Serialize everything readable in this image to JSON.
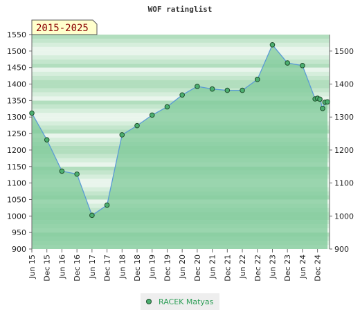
{
  "chart_data": {
    "type": "area",
    "title": "WOF ratinglist",
    "period_label": "2015-2025",
    "ylim": [
      900,
      1550
    ],
    "y_ticks_left": [
      900,
      950,
      1000,
      1050,
      1100,
      1150,
      1200,
      1250,
      1300,
      1350,
      1400,
      1450,
      1500,
      1550
    ],
    "y_ticks_right": [
      900,
      1000,
      1100,
      1200,
      1300,
      1400,
      1500
    ],
    "x_ticks": [
      "Jun 15",
      "Dec 15",
      "Jun 16",
      "Dec 16",
      "Jun 17",
      "Dec 17",
      "Jun 18",
      "Dec 18",
      "Jun 19",
      "Dec 19",
      "Jun 20",
      "Dec 20",
      "Jun 21",
      "Dec 21",
      "Jun 22",
      "Dec 22",
      "Jun 23",
      "Dec 23",
      "Jun 24",
      "Dec 24"
    ],
    "xlim": [
      2015.5,
      2025.4
    ],
    "legend": "bottom",
    "grid": "horizontal bands",
    "colors": {
      "line": "#5b9bd5",
      "fill": "#7fc99a",
      "marker": "#4caf70",
      "marker_edge": "#1e4d2b",
      "period_bg": "#ffffcc"
    },
    "series": [
      {
        "name": "RACEK Matyas",
        "points": [
          [
            2015.5,
            1312
          ],
          [
            2016.0,
            1231
          ],
          [
            2016.5,
            1136
          ],
          [
            2017.0,
            1127
          ],
          [
            2017.5,
            1002
          ],
          [
            2018.0,
            1033
          ],
          [
            2018.5,
            1246
          ],
          [
            2019.0,
            1274
          ],
          [
            2019.5,
            1306
          ],
          [
            2020.0,
            1331
          ],
          [
            2020.5,
            1367
          ],
          [
            2021.0,
            1393
          ],
          [
            2021.5,
            1385
          ],
          [
            2022.0,
            1381
          ],
          [
            2022.5,
            1381
          ],
          [
            2023.0,
            1414
          ],
          [
            2023.5,
            1519
          ],
          [
            2024.0,
            1464
          ],
          [
            2024.5,
            1456
          ],
          [
            2024.92,
            1355
          ],
          [
            2025.0,
            1357
          ],
          [
            2025.08,
            1354
          ],
          [
            2025.17,
            1326
          ],
          [
            2025.25,
            1345
          ],
          [
            2025.33,
            1346
          ]
        ]
      }
    ]
  }
}
